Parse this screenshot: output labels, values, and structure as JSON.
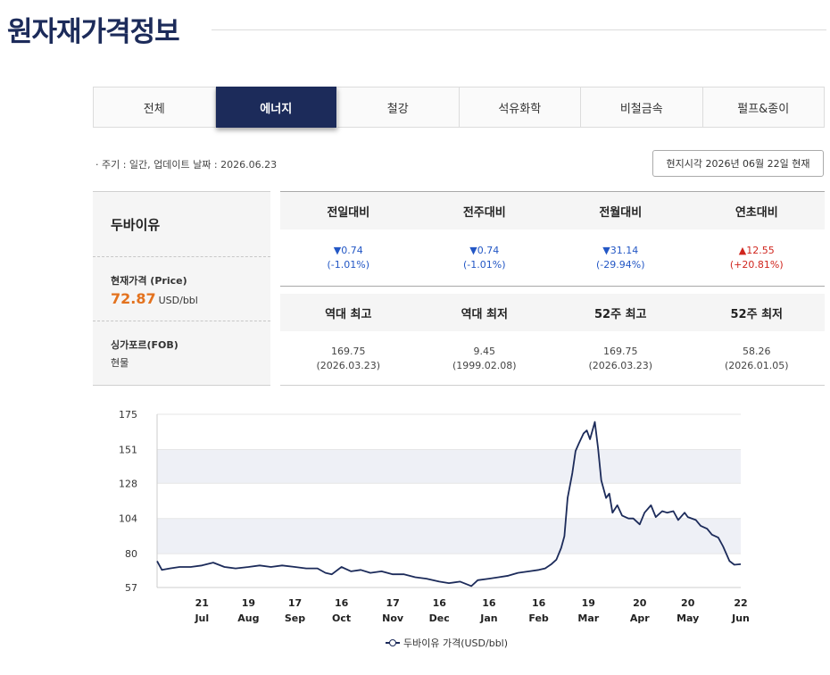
{
  "header": {
    "title": "원자재가격정보"
  },
  "tabs": [
    {
      "label": "전체",
      "active": false
    },
    {
      "label": "에너지",
      "active": true
    },
    {
      "label": "철강",
      "active": false
    },
    {
      "label": "석유화학",
      "active": false
    },
    {
      "label": "비철금속",
      "active": false
    },
    {
      "label": "펄프&종이",
      "active": false
    }
  ],
  "meta": {
    "info": "· 주기 : 일간, 업데이트 날짜 : 2026.06.23"
  },
  "local_time_button": "현지시각 2026년 06월 22일 현재",
  "commodity": {
    "name": "두바이유",
    "price_label": "현재가격 (Price)",
    "price": "72.87",
    "unit": "USD/bbl",
    "market": "싱가포르(FOB)",
    "market_type": "현물"
  },
  "changes": {
    "headers": [
      "전일대비",
      "전주대비",
      "전월대비",
      "연초대비"
    ],
    "values": [
      {
        "change": "▼0.74",
        "pct": "(-1.01%)",
        "dir": "down"
      },
      {
        "change": "▼0.74",
        "pct": "(-1.01%)",
        "dir": "down"
      },
      {
        "change": "▼31.14",
        "pct": "(-29.94%)",
        "dir": "down"
      },
      {
        "change": "▲12.55",
        "pct": "(+20.81%)",
        "dir": "up"
      }
    ]
  },
  "records": {
    "headers": [
      "역대 최고",
      "역대 최저",
      "52주 최고",
      "52주 최저"
    ],
    "values": [
      {
        "value": "169.75",
        "date": "(2026.03.23)"
      },
      {
        "value": "9.45",
        "date": "(1999.02.08)"
      },
      {
        "value": "169.75",
        "date": "(2026.03.23)"
      },
      {
        "value": "58.26",
        "date": "(2026.01.05)"
      }
    ]
  },
  "colors": {
    "brand": "#1c2b5a",
    "price": "#e3721e",
    "down": "#2357c5",
    "up": "#d0261e"
  },
  "chart_data": {
    "type": "line",
    "ylim": [
      57,
      175
    ],
    "y_ticks": [
      "175",
      "151",
      "128",
      "104",
      "80",
      "57"
    ],
    "x_ticks": [
      {
        "day": "21",
        "month": "Jul"
      },
      {
        "day": "19",
        "month": "Aug"
      },
      {
        "day": "17",
        "month": "Sep"
      },
      {
        "day": "16",
        "month": "Oct"
      },
      {
        "day": "17",
        "month": "Nov"
      },
      {
        "day": "16",
        "month": "Dec"
      },
      {
        "day": "16",
        "month": "Jan"
      },
      {
        "day": "16",
        "month": "Feb"
      },
      {
        "day": "19",
        "month": "Mar"
      },
      {
        "day": "20",
        "month": "Apr"
      },
      {
        "day": "20",
        "month": "May"
      },
      {
        "day": "22",
        "month": "Jun"
      }
    ],
    "legend": "두바이유 가격(USD/bbl)",
    "grid_bands": true,
    "series": [
      {
        "name": "두바이유 가격(USD/bbl)",
        "x": [
          "2025-06-23",
          "2025-06-26",
          "2025-07-01",
          "2025-07-07",
          "2025-07-14",
          "2025-07-21",
          "2025-07-28",
          "2025-08-04",
          "2025-08-11",
          "2025-08-19",
          "2025-08-26",
          "2025-09-02",
          "2025-09-09",
          "2025-09-17",
          "2025-09-24",
          "2025-10-01",
          "2025-10-06",
          "2025-10-10",
          "2025-10-16",
          "2025-10-22",
          "2025-10-28",
          "2025-11-03",
          "2025-11-10",
          "2025-11-17",
          "2025-11-24",
          "2025-12-01",
          "2025-12-08",
          "2025-12-16",
          "2025-12-22",
          "2025-12-29",
          "2026-01-05",
          "2026-01-09",
          "2026-01-16",
          "2026-01-22",
          "2026-01-28",
          "2026-02-03",
          "2026-02-10",
          "2026-02-16",
          "2026-02-20",
          "2026-02-24",
          "2026-02-27",
          "2026-03-02",
          "2026-03-04",
          "2026-03-06",
          "2026-03-09",
          "2026-03-11",
          "2026-03-13",
          "2026-03-16",
          "2026-03-18",
          "2026-03-20",
          "2026-03-23",
          "2026-03-25",
          "2026-03-27",
          "2026-03-30",
          "2026-04-01",
          "2026-04-03",
          "2026-04-06",
          "2026-04-09",
          "2026-04-13",
          "2026-04-16",
          "2026-04-20",
          "2026-04-23",
          "2026-04-27",
          "2026-04-30",
          "2026-05-04",
          "2026-05-07",
          "2026-05-11",
          "2026-05-14",
          "2026-05-18",
          "2026-05-20",
          "2026-05-25",
          "2026-05-28",
          "2026-06-01",
          "2026-06-04",
          "2026-06-08",
          "2026-06-11",
          "2026-06-15",
          "2026-06-18",
          "2026-06-22"
        ],
        "values": [
          75,
          69,
          70,
          71,
          71,
          72,
          74,
          71,
          70,
          71,
          72,
          71,
          72,
          71,
          70,
          70,
          67,
          66,
          71,
          68,
          69,
          67,
          68,
          66,
          66,
          64,
          63,
          61,
          60,
          61,
          58,
          62,
          63,
          64,
          65,
          67,
          68,
          69,
          70,
          73,
          76,
          84,
          92,
          118,
          135,
          150,
          155,
          162,
          164,
          158,
          169.75,
          152,
          130,
          118,
          121,
          108,
          113,
          106,
          104,
          104,
          100,
          108,
          113,
          105,
          109,
          108,
          109,
          103,
          108,
          105,
          103,
          99,
          97,
          93,
          91,
          85,
          75,
          72.5,
          72.87
        ]
      }
    ]
  }
}
